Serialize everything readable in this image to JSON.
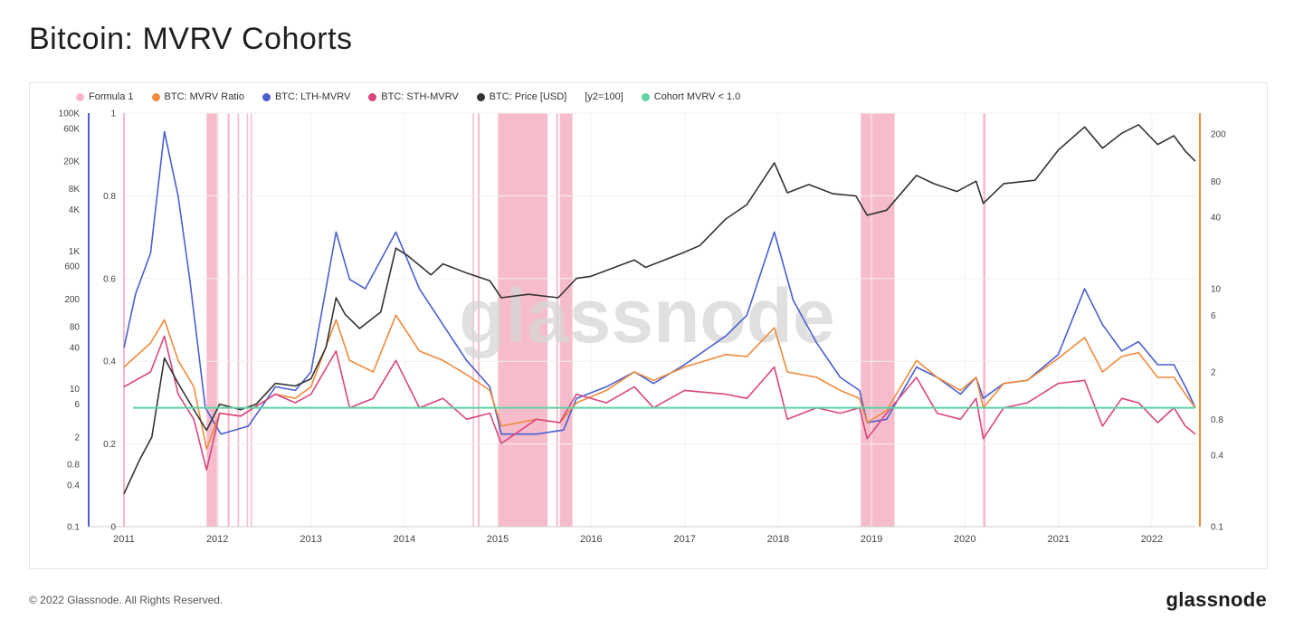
{
  "page": {
    "title": "Bitcoin: MVRV Cohorts",
    "footer_copyright": "© 2022 Glassnode. All Rights Reserved.",
    "footer_logo": "glassnode",
    "watermark": "glassnode"
  },
  "legend": [
    {
      "label": "Formula 1",
      "color": "#f7b8c8"
    },
    {
      "label": "BTC: MVRV Ratio",
      "color": "#f08a3c"
    },
    {
      "label": "BTC: LTH-MVRV",
      "color": "#4a5fd0"
    },
    {
      "label": "BTC: STH-MVRV",
      "color": "#d9457f"
    },
    {
      "label": "BTC: Price [USD]",
      "color": "#333333"
    },
    {
      "label": "[y2=100]",
      "color": null
    },
    {
      "label": "Cohort MVRV < 1.0",
      "color": "#5cd3a0"
    }
  ],
  "chart_data": {
    "type": "line",
    "x_axis": {
      "type": "date",
      "range": [
        "2011-01-01",
        "2022-06-20"
      ],
      "ticks": [
        "2011",
        "2012",
        "2013",
        "2014",
        "2015",
        "2016",
        "2017",
        "2018",
        "2019",
        "2020",
        "2021",
        "2022"
      ]
    },
    "y_axes": {
      "price_log": {
        "ticks": [
          "100K",
          "60K",
          "20K",
          "8K",
          "4K",
          "1K",
          "600",
          "200",
          "80",
          "40",
          "10",
          "6",
          "2",
          "0.8",
          "0.4",
          "0.1"
        ],
        "range": [
          0.1,
          100000
        ],
        "scale": "log"
      },
      "formula_linear": {
        "ticks": [
          "1",
          "0.8",
          "0.6",
          "0.4",
          "0.2",
          "0"
        ],
        "range": [
          0,
          1
        ]
      },
      "ratio_log": {
        "ticks": [
          "200",
          "80",
          "40",
          "10",
          "6",
          "2",
          "0.8",
          "0.4",
          "0.1"
        ],
        "range": [
          0.1,
          300
        ],
        "scale": "log"
      }
    },
    "formula_bands": [
      [
        "2011-11-20",
        "2012-01-05"
      ],
      [
        "2012-02-10",
        "2012-02-18"
      ],
      [
        "2012-03-20",
        "2012-03-26"
      ],
      [
        "2012-04-25",
        "2012-04-30"
      ],
      [
        "2012-05-10",
        "2012-05-14"
      ],
      [
        "2014-09-25",
        "2014-09-30"
      ],
      [
        "2014-10-15",
        "2014-10-22"
      ],
      [
        "2015-01-01",
        "2015-07-15"
      ],
      [
        "2015-08-18",
        "2015-08-25"
      ],
      [
        "2015-09-01",
        "2015-10-20"
      ],
      [
        "2018-11-20",
        "2019-04-01"
      ],
      [
        "2020-03-12",
        "2020-03-22"
      ]
    ],
    "threshold": {
      "name": "Cohort MVRV < 1.0",
      "value": 1.0
    },
    "series": [
      {
        "name": "BTC: Price [USD]",
        "axis": "price_log",
        "color": "#333333",
        "points": [
          [
            "2011-01-01",
            0.3
          ],
          [
            "2011-03-01",
            0.9
          ],
          [
            "2011-04-20",
            2
          ],
          [
            "2011-06-08",
            28
          ],
          [
            "2011-08-01",
            12
          ],
          [
            "2011-10-01",
            5
          ],
          [
            "2011-11-20",
            2.5
          ],
          [
            "2012-01-10",
            6
          ],
          [
            "2012-04-01",
            5
          ],
          [
            "2012-06-01",
            6
          ],
          [
            "2012-08-15",
            12
          ],
          [
            "2012-11-01",
            11
          ],
          [
            "2013-01-01",
            14
          ],
          [
            "2013-03-01",
            40
          ],
          [
            "2013-04-09",
            210
          ],
          [
            "2013-05-15",
            120
          ],
          [
            "2013-07-10",
            75
          ],
          [
            "2013-10-01",
            130
          ],
          [
            "2013-11-29",
            1100
          ],
          [
            "2014-01-15",
            850
          ],
          [
            "2014-04-15",
            450
          ],
          [
            "2014-06-01",
            650
          ],
          [
            "2014-09-01",
            480
          ],
          [
            "2014-12-01",
            370
          ],
          [
            "2015-01-15",
            210
          ],
          [
            "2015-05-01",
            235
          ],
          [
            "2015-08-25",
            210
          ],
          [
            "2015-11-05",
            400
          ],
          [
            "2016-01-01",
            430
          ],
          [
            "2016-06-18",
            740
          ],
          [
            "2016-08-01",
            580
          ],
          [
            "2016-12-31",
            960
          ],
          [
            "2017-03-01",
            1200
          ],
          [
            "2017-06-10",
            2900
          ],
          [
            "2017-09-01",
            4700
          ],
          [
            "2017-12-17",
            19000
          ],
          [
            "2018-02-06",
            7000
          ],
          [
            "2018-05-01",
            9200
          ],
          [
            "2018-08-01",
            6800
          ],
          [
            "2018-11-01",
            6300
          ],
          [
            "2018-12-15",
            3300
          ],
          [
            "2019-03-01",
            3900
          ],
          [
            "2019-06-26",
            12500
          ],
          [
            "2019-09-01",
            9500
          ],
          [
            "2019-12-01",
            7300
          ],
          [
            "2020-02-14",
            10300
          ],
          [
            "2020-03-13",
            4900
          ],
          [
            "2020-06-01",
            9500
          ],
          [
            "2020-10-01",
            10600
          ],
          [
            "2020-12-31",
            29000
          ],
          [
            "2021-04-13",
            63000
          ],
          [
            "2021-06-22",
            31000
          ],
          [
            "2021-09-05",
            51000
          ],
          [
            "2021-11-10",
            68000
          ],
          [
            "2022-01-24",
            35000
          ],
          [
            "2022-03-28",
            47000
          ],
          [
            "2022-05-12",
            28000
          ],
          [
            "2022-06-20",
            20000
          ]
        ]
      },
      {
        "name": "BTC: LTH-MVRV",
        "axis": "ratio_log",
        "color": "#4a5fd0",
        "points": [
          [
            "2011-01-01",
            3.2
          ],
          [
            "2011-02-15",
            9
          ],
          [
            "2011-04-15",
            20
          ],
          [
            "2011-06-08",
            210
          ],
          [
            "2011-08-01",
            60
          ],
          [
            "2011-09-15",
            12
          ],
          [
            "2011-11-15",
            1.0
          ],
          [
            "2012-01-15",
            0.6
          ],
          [
            "2012-05-01",
            0.7
          ],
          [
            "2012-08-15",
            1.5
          ],
          [
            "2012-11-01",
            1.4
          ],
          [
            "2013-01-01",
            2.0
          ],
          [
            "2013-04-09",
            30
          ],
          [
            "2013-06-01",
            12
          ],
          [
            "2013-08-01",
            10
          ],
          [
            "2013-11-29",
            30
          ],
          [
            "2014-03-01",
            10
          ],
          [
            "2014-06-01",
            5
          ],
          [
            "2014-09-01",
            2.5
          ],
          [
            "2014-12-01",
            1.5
          ],
          [
            "2015-01-15",
            0.6
          ],
          [
            "2015-06-01",
            0.6
          ],
          [
            "2015-09-15",
            0.65
          ],
          [
            "2015-11-05",
            1.2
          ],
          [
            "2016-03-01",
            1.5
          ],
          [
            "2016-06-18",
            2.0
          ],
          [
            "2016-09-01",
            1.6
          ],
          [
            "2016-12-31",
            2.3
          ],
          [
            "2017-06-10",
            4
          ],
          [
            "2017-09-01",
            6
          ],
          [
            "2017-12-17",
            30
          ],
          [
            "2018-03-01",
            8
          ],
          [
            "2018-06-01",
            3.5
          ],
          [
            "2018-09-01",
            1.8
          ],
          [
            "2018-11-15",
            1.4
          ],
          [
            "2018-12-15",
            0.75
          ],
          [
            "2019-03-01",
            0.8
          ],
          [
            "2019-06-26",
            2.2
          ],
          [
            "2019-09-15",
            1.8
          ],
          [
            "2019-12-15",
            1.3
          ],
          [
            "2020-02-14",
            1.8
          ],
          [
            "2020-03-13",
            1.2
          ],
          [
            "2020-06-01",
            1.6
          ],
          [
            "2020-09-01",
            1.7
          ],
          [
            "2020-12-31",
            2.8
          ],
          [
            "2021-04-13",
            10
          ],
          [
            "2021-06-22",
            5
          ],
          [
            "2021-09-05",
            3
          ],
          [
            "2021-11-10",
            3.6
          ],
          [
            "2022-01-24",
            2.3
          ],
          [
            "2022-03-28",
            2.3
          ],
          [
            "2022-05-12",
            1.5
          ],
          [
            "2022-06-20",
            1.0
          ]
        ]
      },
      {
        "name": "BTC: MVRV Ratio",
        "axis": "ratio_log",
        "color": "#f08a3c",
        "points": [
          [
            "2011-01-01",
            2.2
          ],
          [
            "2011-04-15",
            3.5
          ],
          [
            "2011-06-08",
            5.5
          ],
          [
            "2011-08-01",
            2.5
          ],
          [
            "2011-10-01",
            1.5
          ],
          [
            "2011-11-20",
            0.45
          ],
          [
            "2012-01-10",
            0.9
          ],
          [
            "2012-04-01",
            0.85
          ],
          [
            "2012-08-15",
            1.3
          ],
          [
            "2012-11-01",
            1.2
          ],
          [
            "2013-01-01",
            1.5
          ],
          [
            "2013-04-09",
            5.5
          ],
          [
            "2013-06-01",
            2.5
          ],
          [
            "2013-09-01",
            2.0
          ],
          [
            "2013-11-29",
            6
          ],
          [
            "2014-03-01",
            3
          ],
          [
            "2014-06-01",
            2.5
          ],
          [
            "2014-09-01",
            1.9
          ],
          [
            "2014-12-01",
            1.4
          ],
          [
            "2015-01-15",
            0.7
          ],
          [
            "2015-06-01",
            0.8
          ],
          [
            "2015-09-01",
            0.75
          ],
          [
            "2015-11-05",
            1.1
          ],
          [
            "2016-03-01",
            1.4
          ],
          [
            "2016-06-18",
            2.0
          ],
          [
            "2016-09-01",
            1.7
          ],
          [
            "2016-12-31",
            2.2
          ],
          [
            "2017-06-10",
            2.8
          ],
          [
            "2017-09-01",
            2.7
          ],
          [
            "2017-12-17",
            4.7
          ],
          [
            "2018-02-06",
            2.0
          ],
          [
            "2018-06-01",
            1.8
          ],
          [
            "2018-09-01",
            1.4
          ],
          [
            "2018-11-15",
            1.2
          ],
          [
            "2018-12-15",
            0.75
          ],
          [
            "2019-03-01",
            0.95
          ],
          [
            "2019-06-26",
            2.5
          ],
          [
            "2019-09-15",
            1.8
          ],
          [
            "2019-12-15",
            1.4
          ],
          [
            "2020-02-14",
            1.8
          ],
          [
            "2020-03-13",
            1.0
          ],
          [
            "2020-06-01",
            1.6
          ],
          [
            "2020-09-01",
            1.7
          ],
          [
            "2020-12-31",
            2.6
          ],
          [
            "2021-04-13",
            3.9
          ],
          [
            "2021-06-22",
            2.0
          ],
          [
            "2021-09-05",
            2.7
          ],
          [
            "2021-11-10",
            2.9
          ],
          [
            "2022-01-24",
            1.8
          ],
          [
            "2022-03-28",
            1.8
          ],
          [
            "2022-05-12",
            1.3
          ],
          [
            "2022-06-20",
            1.0
          ]
        ]
      },
      {
        "name": "BTC: STH-MVRV",
        "axis": "ratio_log",
        "color": "#d9457f",
        "points": [
          [
            "2011-01-01",
            1.5
          ],
          [
            "2011-04-15",
            2.0
          ],
          [
            "2011-06-08",
            4
          ],
          [
            "2011-08-01",
            1.3
          ],
          [
            "2011-10-01",
            0.8
          ],
          [
            "2011-11-20",
            0.3
          ],
          [
            "2012-01-10",
            0.9
          ],
          [
            "2012-04-01",
            0.85
          ],
          [
            "2012-08-15",
            1.3
          ],
          [
            "2012-11-01",
            1.1
          ],
          [
            "2013-01-01",
            1.3
          ],
          [
            "2013-04-09",
            3
          ],
          [
            "2013-06-01",
            1.0
          ],
          [
            "2013-09-01",
            1.2
          ],
          [
            "2013-11-29",
            2.5
          ],
          [
            "2014-03-01",
            1.0
          ],
          [
            "2014-06-01",
            1.2
          ],
          [
            "2014-09-01",
            0.8
          ],
          [
            "2014-12-01",
            0.9
          ],
          [
            "2015-01-15",
            0.5
          ],
          [
            "2015-06-01",
            0.8
          ],
          [
            "2015-09-01",
            0.75
          ],
          [
            "2015-11-05",
            1.3
          ],
          [
            "2016-03-01",
            1.1
          ],
          [
            "2016-06-18",
            1.5
          ],
          [
            "2016-09-01",
            1.0
          ],
          [
            "2016-12-31",
            1.4
          ],
          [
            "2017-06-10",
            1.3
          ],
          [
            "2017-09-01",
            1.2
          ],
          [
            "2017-12-17",
            2.2
          ],
          [
            "2018-02-06",
            0.8
          ],
          [
            "2018-06-01",
            1.0
          ],
          [
            "2018-09-01",
            0.9
          ],
          [
            "2018-11-15",
            1.0
          ],
          [
            "2018-12-15",
            0.55
          ],
          [
            "2019-03-01",
            0.9
          ],
          [
            "2019-06-26",
            1.8
          ],
          [
            "2019-09-15",
            0.9
          ],
          [
            "2019-12-15",
            0.8
          ],
          [
            "2020-02-14",
            1.2
          ],
          [
            "2020-03-13",
            0.55
          ],
          [
            "2020-06-01",
            1.0
          ],
          [
            "2020-09-01",
            1.1
          ],
          [
            "2020-12-31",
            1.6
          ],
          [
            "2021-04-13",
            1.7
          ],
          [
            "2021-06-22",
            0.7
          ],
          [
            "2021-09-05",
            1.2
          ],
          [
            "2021-11-10",
            1.1
          ],
          [
            "2022-01-24",
            0.75
          ],
          [
            "2022-03-28",
            1.0
          ],
          [
            "2022-05-12",
            0.7
          ],
          [
            "2022-06-20",
            0.6
          ]
        ]
      }
    ]
  }
}
